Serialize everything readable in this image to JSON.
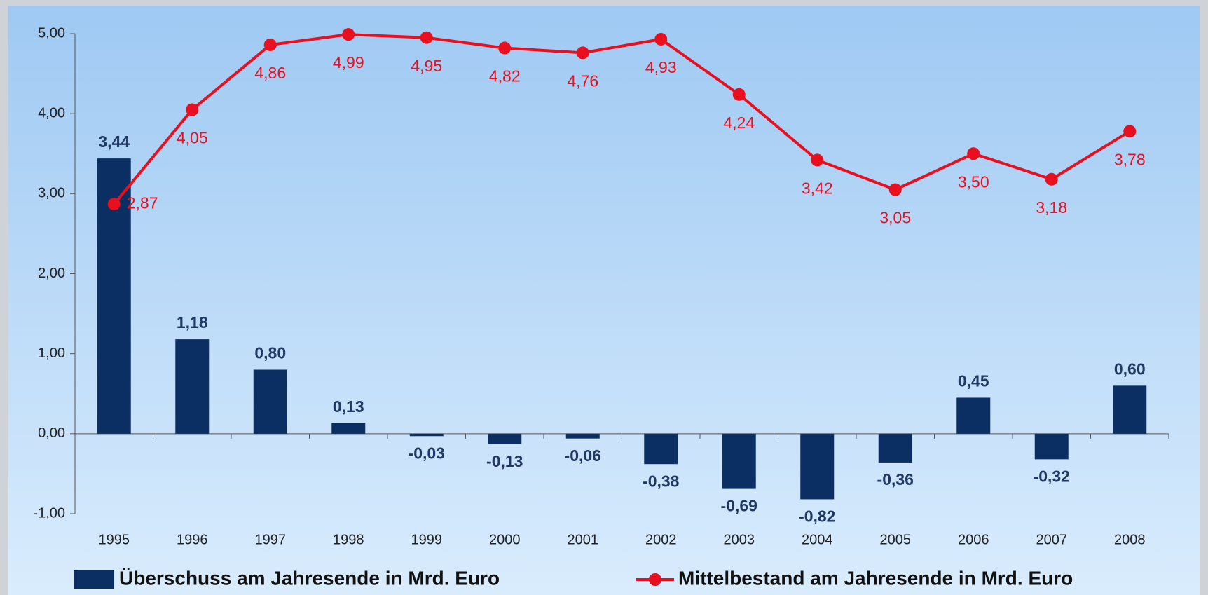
{
  "chart_data": {
    "type": "bar_line",
    "categories": [
      "1995",
      "1996",
      "1997",
      "1998",
      "1999",
      "2000",
      "2001",
      "2002",
      "2003",
      "2004",
      "2005",
      "2006",
      "2007",
      "2008"
    ],
    "series": [
      {
        "name": "Überschuss am Jahresende in Mrd. Euro",
        "type": "bar",
        "color": "#0b2f63",
        "values": [
          3.44,
          1.18,
          0.8,
          0.13,
          -0.03,
          -0.13,
          -0.06,
          -0.38,
          -0.69,
          -0.82,
          -0.36,
          0.45,
          -0.32,
          0.6
        ],
        "value_labels": [
          "3,44",
          "1,18",
          "0,80",
          "0,13",
          "-0,03",
          "-0,13",
          "-0,06",
          "-0,38",
          "-0,69",
          "-0,82",
          "-0,36",
          "0,45",
          "-0,32",
          "0,60"
        ]
      },
      {
        "name": "Mittelbestand am Jahresende in Mrd. Euro",
        "type": "line",
        "color": "#e8101e",
        "values": [
          2.87,
          4.05,
          4.86,
          4.99,
          4.95,
          4.82,
          4.76,
          4.93,
          4.24,
          3.42,
          3.05,
          3.5,
          3.18,
          3.78
        ],
        "value_labels": [
          "2,87",
          "4,05",
          "4,86",
          "4,99",
          "4,95",
          "4,82",
          "4,76",
          "4,93",
          "4,24",
          "3,42",
          "3,05",
          "3,50",
          "3,18",
          "3,78"
        ]
      }
    ],
    "ylim": [
      -1,
      5
    ],
    "yticks": [
      {
        "value": -1,
        "label": "-1,00"
      },
      {
        "value": 0,
        "label": "0,00"
      },
      {
        "value": 1,
        "label": "1,00"
      },
      {
        "value": 2,
        "label": "2,00"
      },
      {
        "value": 3,
        "label": "3,00"
      },
      {
        "value": 4,
        "label": "4,00"
      },
      {
        "value": 5,
        "label": "5,00"
      }
    ]
  }
}
